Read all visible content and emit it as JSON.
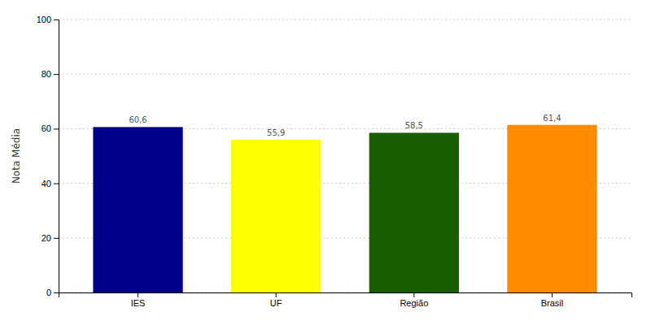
{
  "chart_data": {
    "type": "bar",
    "categories": [
      "IES",
      "UF",
      "Região",
      "Brasil"
    ],
    "values": [
      60.6,
      55.9,
      58.5,
      61.4
    ],
    "value_labels": [
      "60,6",
      "55,9",
      "58,5",
      "61,4"
    ],
    "colors": [
      "#00008B",
      "#FFFF00",
      "#1A5C00",
      "#FF8C00"
    ],
    "ylabel": "Nota Média",
    "ylim": [
      0,
      100
    ],
    "yticks": [
      0,
      20,
      40,
      60,
      80,
      100
    ],
    "grid": true,
    "data_labels": true
  }
}
